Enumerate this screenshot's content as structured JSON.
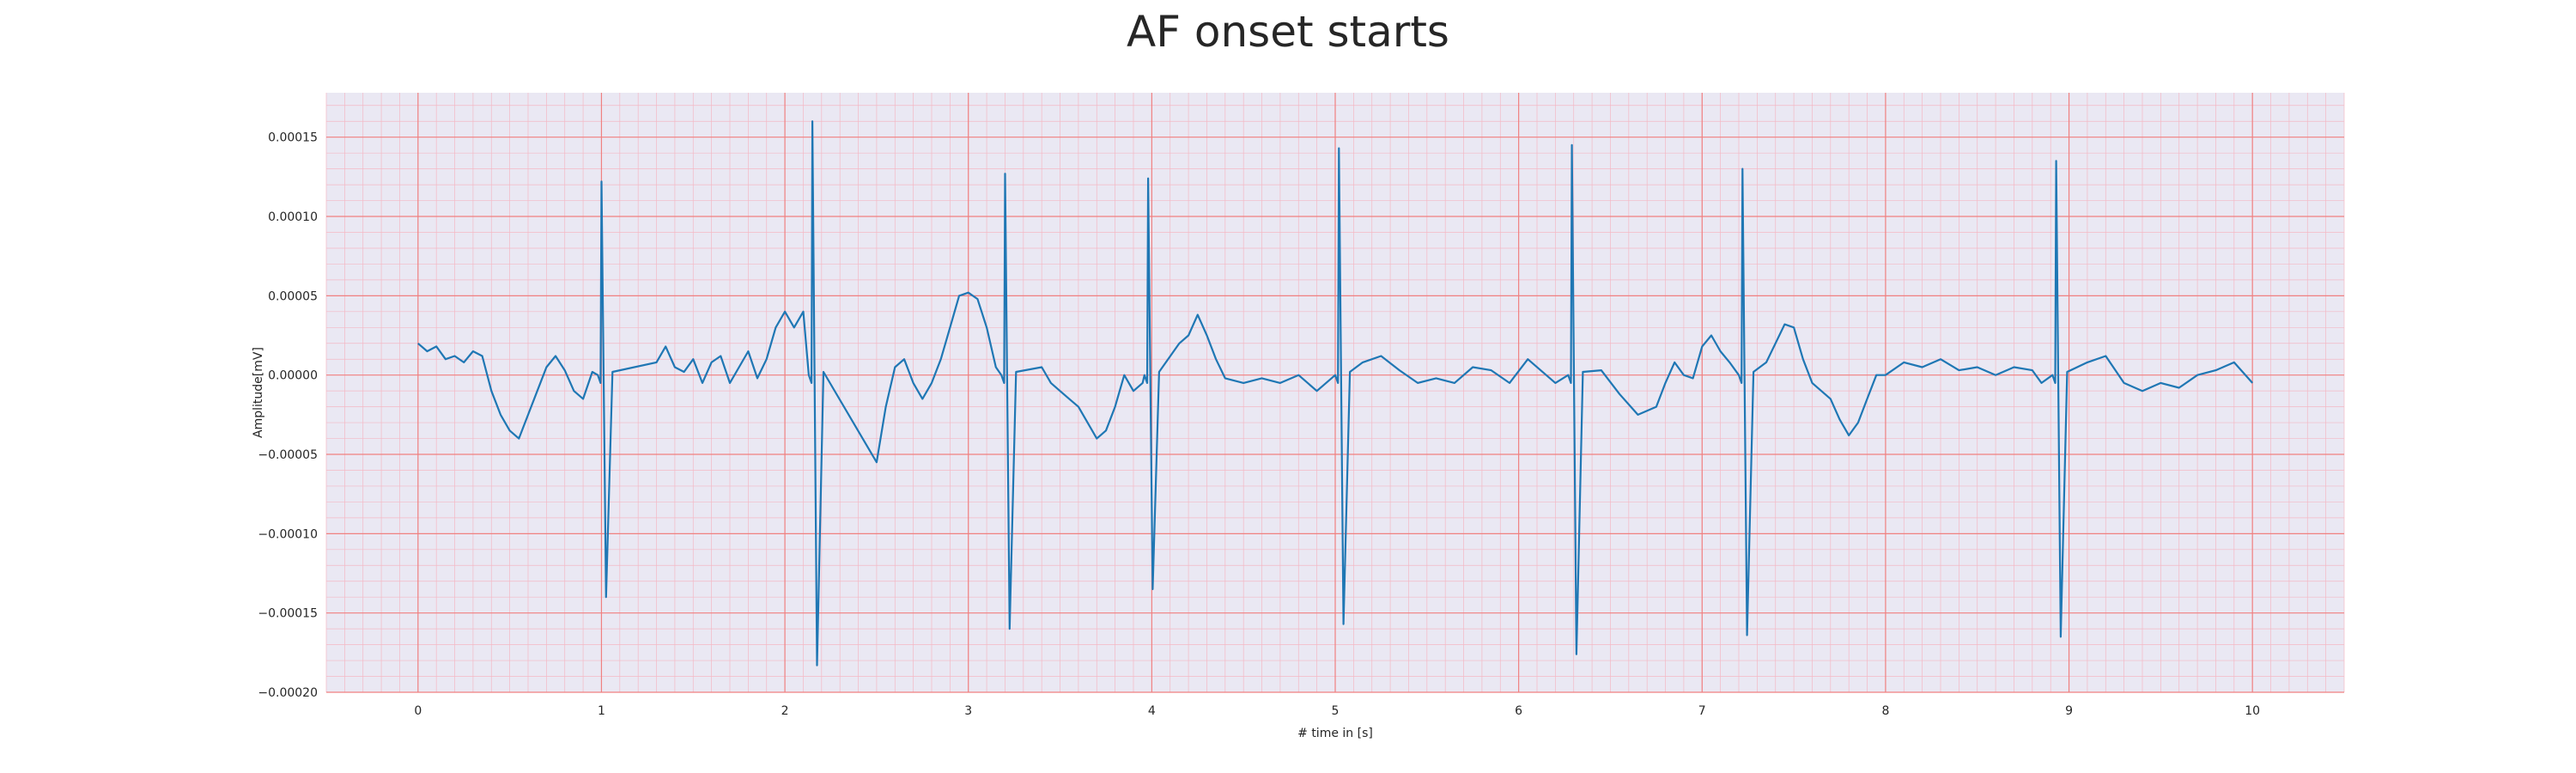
{
  "chart_data": {
    "type": "line",
    "title": "AF onset starts",
    "xlabel": "# time in [s]",
    "ylabel": "Amplitude[mV]",
    "xlim": [
      -0.5,
      10.5
    ],
    "ylim": [
      -0.0002,
      0.000178
    ],
    "xticks": [
      0,
      1,
      2,
      3,
      4,
      5,
      6,
      7,
      8,
      9,
      10
    ],
    "xtick_labels": [
      "0",
      "1",
      "2",
      "3",
      "4",
      "5",
      "6",
      "7",
      "8",
      "9",
      "10"
    ],
    "yticks": [
      -0.0002,
      -0.00015,
      -0.0001,
      -5e-05,
      0,
      5e-05,
      0.0001,
      0.00015
    ],
    "ytick_labels": [
      "−0.00020",
      "−0.00015",
      "−0.00010",
      "−0.00005",
      "0.00000",
      "0.00005",
      "0.00010",
      "0.00015"
    ],
    "grid": true,
    "minor_grid": true,
    "colors": {
      "line": "#1f77b4",
      "major_grid": "#f08080",
      "minor_grid": "#f4b8c4",
      "background": "#eae8f3"
    },
    "series": [
      {
        "baseline": [
          [
            0,
            2e-05
          ],
          [
            0.05,
            1.5e-05
          ],
          [
            0.1,
            1.8e-05
          ],
          [
            0.15,
            1e-05
          ],
          [
            0.2,
            1.2e-05
          ],
          [
            0.25,
            8e-06
          ],
          [
            0.3,
            1.5e-05
          ],
          [
            0.35,
            1.2e-05
          ],
          [
            0.4,
            -1e-05
          ],
          [
            0.45,
            -2.5e-05
          ],
          [
            0.5,
            -3.5e-05
          ],
          [
            0.55,
            -4e-05
          ],
          [
            0.6,
            -2.5e-05
          ],
          [
            0.65,
            -1e-05
          ],
          [
            0.7,
            5e-06
          ],
          [
            0.75,
            1.2e-05
          ],
          [
            0.8,
            3e-06
          ],
          [
            0.85,
            -1e-05
          ],
          [
            0.9,
            -1.5e-05
          ],
          [
            0.95,
            2e-06
          ],
          [
            1.3,
            8e-06
          ],
          [
            1.35,
            1.8e-05
          ],
          [
            1.4,
            5e-06
          ],
          [
            1.45,
            2e-06
          ],
          [
            1.5,
            1e-05
          ],
          [
            1.55,
            -5e-06
          ],
          [
            1.6,
            8e-06
          ],
          [
            1.65,
            1.2e-05
          ],
          [
            1.7,
            -5e-06
          ],
          [
            1.75,
            5e-06
          ],
          [
            1.8,
            1.5e-05
          ],
          [
            1.85,
            -2e-06
          ],
          [
            1.9,
            1e-05
          ],
          [
            1.95,
            3e-05
          ],
          [
            2.0,
            4e-05
          ],
          [
            2.05,
            3e-05
          ],
          [
            2.1,
            4e-05
          ],
          [
            2.5,
            -5.5e-05
          ],
          [
            2.55,
            -2e-05
          ],
          [
            2.6,
            5e-06
          ],
          [
            2.65,
            1e-05
          ],
          [
            2.7,
            -5e-06
          ],
          [
            2.75,
            -1.5e-05
          ],
          [
            2.8,
            -5e-06
          ],
          [
            2.85,
            1e-05
          ],
          [
            2.9,
            3e-05
          ],
          [
            2.95,
            5e-05
          ],
          [
            3.0,
            5.2e-05
          ],
          [
            3.05,
            4.8e-05
          ],
          [
            3.1,
            3e-05
          ],
          [
            3.15,
            5e-06
          ],
          [
            3.4,
            5e-06
          ],
          [
            3.45,
            -5e-06
          ],
          [
            3.5,
            -1e-05
          ],
          [
            3.55,
            -1.5e-05
          ],
          [
            3.6,
            -2e-05
          ],
          [
            3.65,
            -3e-05
          ],
          [
            3.7,
            -4e-05
          ],
          [
            3.75,
            -3.5e-05
          ],
          [
            3.8,
            -2e-05
          ],
          [
            3.85,
            0.0
          ],
          [
            3.9,
            -1e-05
          ],
          [
            3.95,
            -5e-06
          ],
          [
            4.15,
            2e-05
          ],
          [
            4.2,
            2.5e-05
          ],
          [
            4.25,
            3.8e-05
          ],
          [
            4.3,
            2.5e-05
          ],
          [
            4.35,
            1e-05
          ],
          [
            4.4,
            -2e-06
          ],
          [
            4.5,
            -5e-06
          ],
          [
            4.6,
            -2e-06
          ],
          [
            4.7,
            -5e-06
          ],
          [
            4.8,
            0.0
          ],
          [
            4.9,
            -1e-05
          ],
          [
            4.95,
            -5e-06
          ],
          [
            5.15,
            8e-06
          ],
          [
            5.25,
            1.2e-05
          ],
          [
            5.35,
            3e-06
          ],
          [
            5.45,
            -5e-06
          ],
          [
            5.55,
            -2e-06
          ],
          [
            5.65,
            -5e-06
          ],
          [
            5.75,
            5e-06
          ],
          [
            5.85,
            3e-06
          ],
          [
            5.95,
            -5e-06
          ],
          [
            6.05,
            1e-05
          ],
          [
            6.15,
            0.0
          ],
          [
            6.2,
            -5e-06
          ],
          [
            6.45,
            3e-06
          ],
          [
            6.55,
            -1.2e-05
          ],
          [
            6.65,
            -2.5e-05
          ],
          [
            6.75,
            -2e-05
          ],
          [
            6.8,
            -5e-06
          ],
          [
            6.85,
            8e-06
          ],
          [
            6.9,
            0.0
          ],
          [
            6.95,
            -2e-06
          ],
          [
            7.0,
            1.8e-05
          ],
          [
            7.05,
            2.5e-05
          ],
          [
            7.1,
            1.5e-05
          ],
          [
            7.15,
            8e-06
          ],
          [
            7.35,
            8e-06
          ],
          [
            7.4,
            2e-05
          ],
          [
            7.45,
            3.2e-05
          ],
          [
            7.5,
            3e-05
          ],
          [
            7.55,
            1e-05
          ],
          [
            7.6,
            -5e-06
          ],
          [
            7.7,
            -1.5e-05
          ],
          [
            7.75,
            -2.8e-05
          ],
          [
            7.8,
            -3.8e-05
          ],
          [
            7.85,
            -3e-05
          ],
          [
            7.9,
            -1.5e-05
          ],
          [
            7.95,
            0.0
          ],
          [
            8.0,
            0.0
          ],
          [
            8.1,
            8e-06
          ],
          [
            8.2,
            5e-06
          ],
          [
            8.3,
            1e-05
          ],
          [
            8.4,
            3e-06
          ],
          [
            8.5,
            5e-06
          ],
          [
            8.6,
            0.0
          ],
          [
            8.7,
            5e-06
          ],
          [
            8.8,
            3e-06
          ],
          [
            8.85,
            -5e-06
          ],
          [
            9.1,
            8e-06
          ],
          [
            9.2,
            1.2e-05
          ],
          [
            9.3,
            -5e-06
          ],
          [
            9.4,
            -1e-05
          ],
          [
            9.5,
            -5e-06
          ],
          [
            9.6,
            -8e-06
          ],
          [
            9.7,
            0.0
          ],
          [
            9.8,
            3e-06
          ],
          [
            9.9,
            8e-06
          ],
          [
            10.0,
            -5e-06
          ]
        ],
        "peaks": [
          {
            "t": 1.0,
            "max": 0.000122,
            "min": -0.00014
          },
          {
            "t": 2.15,
            "max": 0.00016,
            "min": -0.000183
          },
          {
            "t": 3.2,
            "max": 0.000127,
            "min": -0.00016
          },
          {
            "t": 3.98,
            "max": 0.000124,
            "min": -0.000135
          },
          {
            "t": 5.02,
            "max": 0.000143,
            "min": -0.000157
          },
          {
            "t": 6.29,
            "max": 0.000145,
            "min": -0.000176
          },
          {
            "t": 7.22,
            "max": 0.00013,
            "min": -0.000164
          },
          {
            "t": 8.93,
            "max": 0.000135,
            "min": -0.000165
          }
        ]
      }
    ]
  }
}
